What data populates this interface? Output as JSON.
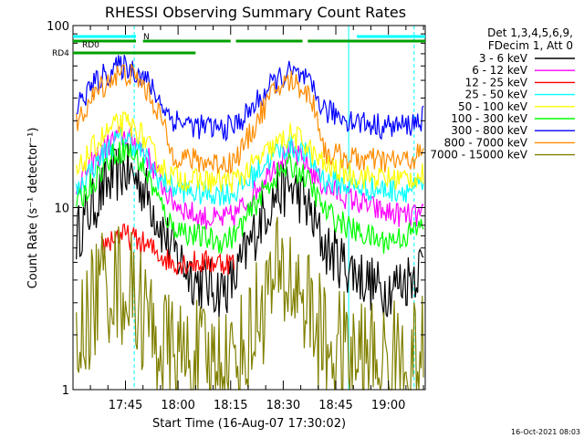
{
  "chart_data": {
    "type": "line",
    "title": "RHESSI Observing Summary Count Rates",
    "xlabel": "Start Time (16-Aug-07 17:30:02)",
    "ylabel": "Count Rate (s⁻¹ detector⁻¹)",
    "yscale": "log",
    "xlim": [
      "17:30:02",
      "19:10:30"
    ],
    "ylim": [
      1,
      100
    ],
    "x_ticks": [
      "17:45",
      "18:00",
      "18:15",
      "18:30",
      "18:45",
      "19:00"
    ],
    "y_ticks": [
      "1",
      "10",
      "100"
    ],
    "legend_position": "right",
    "legend_header": [
      "Det 1,3,4,5,6,9,",
      "FDecim 1, Att 0"
    ],
    "series": [
      {
        "name": "3 - 6 keV",
        "color": "#000000",
        "x": [
          "17:31",
          "17:34",
          "17:38",
          "17:42",
          "17:45",
          "17:49",
          "17:52",
          "17:55",
          "17:58",
          "18:05",
          "18:12",
          "18:16",
          "18:20",
          "18:24",
          "18:28",
          "18:32",
          "18:36",
          "18:39",
          "18:42",
          "18:50",
          "18:58",
          "19:05",
          "19:10"
        ],
        "values": [
          7,
          9,
          12,
          15,
          16,
          14,
          11,
          8,
          6,
          4,
          3.5,
          4,
          6,
          9,
          12,
          13,
          11,
          8,
          6,
          4.5,
          3.5,
          4,
          5
        ]
      },
      {
        "name": "6 - 12 keV",
        "color": "#ff00ff",
        "x": [
          "17:31",
          "17:34",
          "17:38",
          "17:42",
          "17:45",
          "17:49",
          "17:52",
          "17:55",
          "17:58",
          "18:05",
          "18:12",
          "18:16",
          "18:20",
          "18:24",
          "18:28",
          "18:32",
          "18:36",
          "18:39",
          "18:42",
          "18:50",
          "18:58",
          "19:05",
          "19:10"
        ],
        "values": [
          13,
          16,
          20,
          24,
          25,
          22,
          18,
          14,
          11,
          9,
          8.5,
          9,
          11,
          14,
          18,
          20,
          18,
          15,
          13,
          11,
          9.5,
          9,
          9
        ]
      },
      {
        "name": "12 - 25 keV",
        "color": "#ff0000",
        "x": [
          "17:38",
          "17:42",
          "17:45",
          "17:49",
          "17:52",
          "17:55",
          "17:58",
          "18:05",
          "18:12",
          "18:16"
        ],
        "values": [
          6,
          7,
          7,
          6.5,
          6,
          5.5,
          5,
          5,
          5,
          5
        ]
      },
      {
        "name": "25 - 50 keV",
        "color": "#00ffff",
        "x": [
          "17:31",
          "17:34",
          "17:38",
          "17:42",
          "17:45",
          "17:49",
          "17:52",
          "17:55",
          "17:58",
          "18:05",
          "18:12",
          "18:16",
          "18:20",
          "18:24",
          "18:28",
          "18:32",
          "18:36",
          "18:39",
          "18:42",
          "18:50",
          "18:58",
          "19:05",
          "19:10"
        ],
        "values": [
          12,
          15,
          19,
          23,
          24,
          21,
          17,
          14,
          13,
          12,
          12,
          12,
          14,
          17,
          20,
          22,
          20,
          17,
          14,
          13,
          12.5,
          12.5,
          13
        ]
      },
      {
        "name": "50 - 100 keV",
        "color": "#ffff00",
        "x": [
          "17:31",
          "17:34",
          "17:38",
          "17:42",
          "17:45",
          "17:49",
          "17:52",
          "17:55",
          "17:58",
          "18:05",
          "18:12",
          "18:16",
          "18:20",
          "18:24",
          "18:28",
          "18:32",
          "18:36",
          "18:39",
          "18:42",
          "18:50",
          "18:58",
          "19:05",
          "19:10"
        ],
        "values": [
          15,
          19,
          24,
          28,
          29,
          26,
          21,
          17,
          15,
          14,
          14,
          14,
          16,
          19,
          22,
          25,
          23,
          19,
          17,
          15,
          14.5,
          14.5,
          15
        ]
      },
      {
        "name": "100 - 300 keV",
        "color": "#00ff00",
        "x": [
          "17:31",
          "17:34",
          "17:38",
          "17:42",
          "17:45",
          "17:49",
          "17:52",
          "17:55",
          "17:58",
          "18:05",
          "18:12",
          "18:16",
          "18:20",
          "18:24",
          "18:28",
          "18:32",
          "18:36",
          "18:39",
          "18:42",
          "18:50",
          "18:58",
          "19:05",
          "19:10"
        ],
        "values": [
          10,
          12.5,
          16,
          20,
          21,
          18,
          14,
          10.5,
          8,
          7,
          6.5,
          7,
          9,
          12,
          15,
          17,
          15,
          12,
          9.5,
          7.5,
          6.5,
          7,
          8
        ]
      },
      {
        "name": "300 - 800 keV",
        "color": "#0000ff",
        "x": [
          "17:31",
          "17:34",
          "17:38",
          "17:42",
          "17:45",
          "17:49",
          "17:52",
          "17:55",
          "17:58",
          "18:05",
          "18:12",
          "18:16",
          "18:20",
          "18:24",
          "18:28",
          "18:32",
          "18:36",
          "18:39",
          "18:42",
          "18:50",
          "18:58",
          "19:05",
          "19:10"
        ],
        "values": [
          35,
          43,
          52,
          58,
          60,
          55,
          47,
          38,
          31,
          28,
          27,
          28,
          33,
          41,
          50,
          55,
          51,
          42,
          34,
          30,
          28,
          28,
          31
        ]
      },
      {
        "name": "800 - 7000 keV",
        "color": "#ff8c00",
        "x": [
          "17:31",
          "17:34",
          "17:38",
          "17:42",
          "17:45",
          "17:49",
          "17:52",
          "17:55",
          "17:58",
          "18:05",
          "18:12",
          "18:16",
          "18:20",
          "18:24",
          "18:28",
          "18:32",
          "18:36",
          "18:39",
          "18:42",
          "18:50",
          "18:58",
          "19:05",
          "19:10"
        ],
        "values": [
          28,
          36,
          46,
          53,
          55,
          50,
          41,
          32,
          20,
          18,
          17.5,
          18,
          24,
          34,
          45,
          50,
          45,
          36,
          20,
          18.5,
          18,
          18,
          20
        ]
      },
      {
        "name": "7000 - 15000 keV",
        "color": "#808000",
        "x": [
          "17:31",
          "17:34",
          "17:38",
          "17:42",
          "17:45",
          "17:49",
          "17:52",
          "17:55",
          "17:58",
          "18:05",
          "18:12",
          "18:16",
          "18:20",
          "18:24",
          "18:28",
          "18:32",
          "18:36",
          "18:39",
          "18:42",
          "18:50",
          "18:58",
          "19:05",
          "19:10"
        ],
        "values": [
          1.5,
          2.5,
          3.8,
          4,
          3.6,
          3,
          2.2,
          1.8,
          1.5,
          1.4,
          1.4,
          1.4,
          1.8,
          3,
          4,
          4,
          3.3,
          2.3,
          1.7,
          1.5,
          1.4,
          1.4,
          1.5
        ]
      }
    ],
    "flag_bars": [
      {
        "name": "N",
        "color": "#00ffff",
        "segments": [
          [
            "17:30:02",
            "17:48:00"
          ],
          [
            "18:51:00",
            "19:10:30"
          ]
        ]
      },
      {
        "name": "RD0",
        "color": "#00a000",
        "segments": [
          [
            "17:30:02",
            "17:48:00"
          ],
          [
            "17:50:00",
            "18:15:00"
          ],
          [
            "18:16:30",
            "18:35:30"
          ],
          [
            "18:37:00",
            "19:10:30"
          ]
        ]
      },
      {
        "name": "RD4",
        "color": "#00a000",
        "segments": [
          [
            "17:30:02",
            "18:05:00"
          ]
        ]
      }
    ],
    "vlines": [
      {
        "style": "solid",
        "color": "#00ffff",
        "x": [
          "17:30:02",
          "18:48:40"
        ]
      },
      {
        "style": "dashed",
        "color": "#00ffff",
        "x": [
          "17:47:30",
          "19:07:20"
        ]
      }
    ]
  },
  "footer": {
    "timestamp": "16-Oct-2021 08:03"
  }
}
